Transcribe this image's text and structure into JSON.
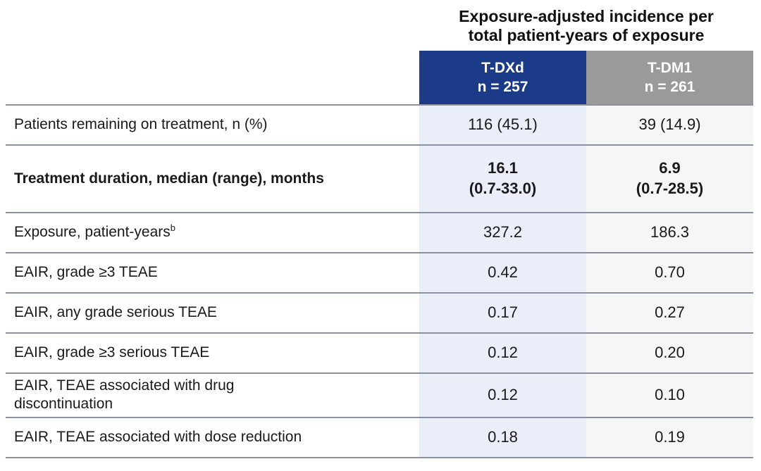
{
  "page": {
    "background": "#ffffff",
    "text_color": "#1a1a1a"
  },
  "table": {
    "title": "Exposure-adjusted incidence per\ntotal patient-years of exposure",
    "divider_color": "#8a91a3",
    "columns": [
      {
        "name": "T-DXd",
        "n_label": "n = 257",
        "header_bg": "#1b3a87",
        "header_text": "#ffffff",
        "body_bg": "#e9eef8"
      },
      {
        "name": "T-DM1",
        "n_label": "n = 261",
        "header_bg": "#9a9a9a",
        "header_text": "#ffffff",
        "body_bg": "#f6f6f6"
      }
    ],
    "rows": [
      {
        "label": "Patients remaining on treatment, n (%)",
        "bold": false,
        "values": [
          "116 (45.1)",
          "39 (14.9)"
        ]
      },
      {
        "label": "Treatment duration, median (range), months",
        "bold": true,
        "values": [
          "16.1\n(0.7-33.0)",
          "6.9\n(0.7-28.5)"
        ]
      },
      {
        "label": "Exposure, patient-years",
        "sup": "b",
        "bold": false,
        "values": [
          "327.2",
          "186.3"
        ]
      },
      {
        "label": "EAIR, grade ≥3 TEAE",
        "bold": false,
        "values": [
          "0.42",
          "0.70"
        ]
      },
      {
        "label": "EAIR, any grade serious TEAE",
        "bold": false,
        "values": [
          "0.17",
          "0.27"
        ]
      },
      {
        "label": "EAIR, grade ≥3 serious TEAE",
        "bold": false,
        "values": [
          "0.12",
          "0.20"
        ]
      },
      {
        "label": "EAIR, TEAE associated with drug\ndiscontinuation",
        "bold": false,
        "values": [
          "0.12",
          "0.10"
        ]
      },
      {
        "label": "EAIR, TEAE associated with dose reduction",
        "bold": false,
        "values": [
          "0.18",
          "0.19"
        ]
      }
    ]
  },
  "chart_data": {
    "type": "table",
    "title": "Exposure-adjusted incidence per total patient-years of exposure",
    "columns": [
      "",
      "T-DXd (n = 257)",
      "T-DM1 (n = 261)"
    ],
    "rows": [
      [
        "Patients remaining on treatment, n (%)",
        "116 (45.1)",
        "39 (14.9)"
      ],
      [
        "Treatment duration, median (range), months",
        "16.1 (0.7-33.0)",
        "6.9 (0.7-28.5)"
      ],
      [
        "Exposure, patient-years(b)",
        "327.2",
        "186.3"
      ],
      [
        "EAIR, grade >=3 TEAE",
        "0.42",
        "0.70"
      ],
      [
        "EAIR, any grade serious TEAE",
        "0.17",
        "0.27"
      ],
      [
        "EAIR, grade >=3 serious TEAE",
        "0.12",
        "0.20"
      ],
      [
        "EAIR, TEAE associated with drug discontinuation",
        "0.12",
        "0.10"
      ],
      [
        "EAIR, TEAE associated with dose reduction",
        "0.18",
        "0.19"
      ]
    ]
  }
}
